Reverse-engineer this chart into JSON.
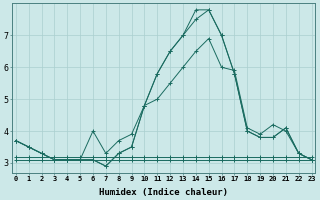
{
  "xlabel": "Humidex (Indice chaleur)",
  "x_ticks": [
    0,
    1,
    2,
    3,
    4,
    5,
    6,
    7,
    8,
    9,
    10,
    11,
    12,
    13,
    14,
    15,
    16,
    17,
    18,
    19,
    20,
    21,
    22,
    23
  ],
  "y_ticks": [
    3,
    4,
    5,
    6,
    7
  ],
  "ylim": [
    2.7,
    8.0
  ],
  "xlim": [
    -0.3,
    23.3
  ],
  "bg_color": "#cce8e8",
  "grid_color": "#aacfcf",
  "line_color": "#1a6b60",
  "series": [
    [
      3.7,
      3.5,
      3.3,
      3.1,
      3.1,
      3.1,
      3.1,
      2.9,
      3.3,
      3.5,
      4.8,
      5.8,
      6.5,
      7.0,
      7.5,
      7.8,
      7.0,
      5.8,
      4.0,
      3.8,
      3.8,
      4.1,
      3.3,
      3.1
    ],
    [
      3.7,
      3.5,
      3.3,
      3.1,
      3.1,
      3.1,
      3.1,
      2.9,
      3.3,
      3.5,
      4.8,
      5.8,
      6.5,
      7.0,
      7.8,
      7.8,
      7.0,
      5.8,
      4.0,
      3.8,
      3.8,
      4.1,
      3.3,
      3.1
    ],
    [
      3.7,
      3.5,
      3.3,
      3.1,
      3.1,
      3.1,
      4.0,
      3.3,
      3.7,
      3.9,
      4.8,
      5.0,
      5.5,
      6.0,
      6.5,
      6.9,
      6.0,
      5.9,
      4.1,
      3.9,
      4.2,
      4.0,
      3.3,
      3.1
    ],
    [
      3.1,
      3.1,
      3.1,
      3.1,
      3.1,
      3.1,
      3.1,
      3.1,
      3.1,
      3.1,
      3.1,
      3.1,
      3.1,
      3.1,
      3.1,
      3.1,
      3.1,
      3.1,
      3.1,
      3.1,
      3.1,
      3.1,
      3.1,
      3.1
    ],
    [
      3.2,
      3.2,
      3.2,
      3.2,
      3.2,
      3.2,
      3.2,
      3.2,
      3.2,
      3.2,
      3.2,
      3.2,
      3.2,
      3.2,
      3.2,
      3.2,
      3.2,
      3.2,
      3.2,
      3.2,
      3.2,
      3.2,
      3.2,
      3.2
    ]
  ]
}
